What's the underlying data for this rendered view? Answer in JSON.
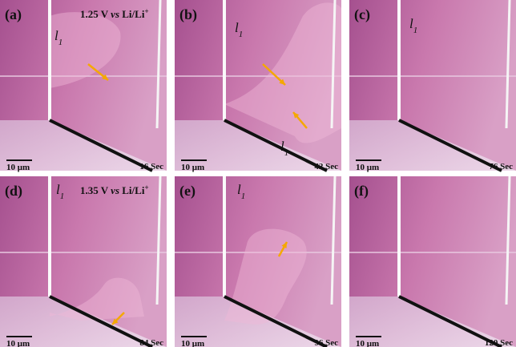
{
  "panels": [
    {
      "label": "(a)",
      "potential": [
        "1.25 V ",
        "vs",
        " Li/Li",
        "+"
      ],
      "phase_labels": [
        [
          "l",
          "1"
        ]
      ],
      "scale_bar": "10 μm",
      "time": "16 Sec"
    },
    {
      "label": "(b)",
      "phase_labels": [
        [
          "l",
          "1"
        ],
        [
          "l",
          "1"
        ]
      ],
      "scale_bar": "10 μm",
      "time": "42 Sec"
    },
    {
      "label": "(c)",
      "phase_labels": [
        [
          "l",
          "1"
        ]
      ],
      "scale_bar": "10 μm",
      "time": "76 Sec"
    },
    {
      "label": "(d)",
      "potential": [
        "1.35 V ",
        "vs",
        " Li/Li",
        "+"
      ],
      "phase_labels": [
        [
          "l",
          "1"
        ]
      ],
      "scale_bar": "10 μm",
      "time": "84 Sec"
    },
    {
      "label": "(e)",
      "phase_labels": [
        [
          "l",
          "1"
        ]
      ],
      "scale_bar": "10 μm",
      "time": "96 Sec"
    },
    {
      "label": "(f)",
      "scale_bar": "10 μm",
      "time": "120 Sec"
    }
  ]
}
